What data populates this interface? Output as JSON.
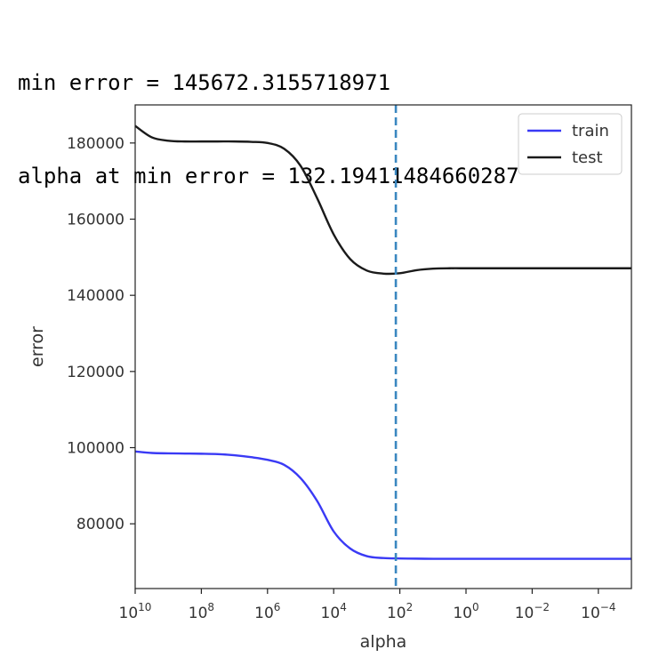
{
  "output_lines": [
    "min error = 145672.3155718971",
    "alpha at min error = 132.19411484660287"
  ],
  "chart_data": {
    "type": "line",
    "title": "",
    "xlabel": "alpha",
    "ylabel": "error",
    "x_scale": "log",
    "x_inverted": true,
    "xlim": [
      10000000000,
      1e-05
    ],
    "ylim": [
      63000,
      190000
    ],
    "x_ticks": [
      {
        "value": 10000000000,
        "base": "10",
        "exp": "10"
      },
      {
        "value": 100000000,
        "base": "10",
        "exp": "8"
      },
      {
        "value": 1000000,
        "base": "10",
        "exp": "6"
      },
      {
        "value": 10000,
        "base": "10",
        "exp": "4"
      },
      {
        "value": 100,
        "base": "10",
        "exp": "2"
      },
      {
        "value": 1,
        "base": "10",
        "exp": "0"
      },
      {
        "value": 0.01,
        "base": "10",
        "exp": "−2"
      },
      {
        "value": 0.0001,
        "base": "10",
        "exp": "−4"
      }
    ],
    "y_ticks": [
      {
        "value": 80000,
        "label": "80000"
      },
      {
        "value": 100000,
        "label": "100000"
      },
      {
        "value": 120000,
        "label": "120000"
      },
      {
        "value": 140000,
        "label": "140000"
      },
      {
        "value": 160000,
        "label": "160000"
      },
      {
        "value": 180000,
        "label": "180000"
      }
    ],
    "vline": {
      "x": 132.19411484660287,
      "color": "#3a87c0",
      "style": "dashed"
    },
    "legend_position": "top-right",
    "grid": false,
    "series": [
      {
        "name": "train",
        "color": "#3a3af5",
        "x": [
          10000000000,
          3162277660,
          1000000000,
          316227766,
          100000000,
          31622777,
          10000000,
          3162278,
          1000000,
          316228,
          100000,
          31623,
          10000,
          3162,
          1000,
          316,
          100,
          31.6,
          10,
          3.16,
          1,
          0.316,
          0.1,
          0.0316,
          0.01,
          0.00316,
          0.001,
          0.000316,
          0.0001,
          3.16e-05,
          1e-05
        ],
        "y": [
          99000,
          98600,
          98500,
          98450,
          98400,
          98300,
          98000,
          97500,
          96800,
          95500,
          92000,
          86000,
          78000,
          73500,
          71500,
          71000,
          70900,
          70850,
          70800,
          70800,
          70800,
          70800,
          70800,
          70800,
          70800,
          70800,
          70800,
          70800,
          70800,
          70800,
          70800
        ]
      },
      {
        "name": "test",
        "color": "#1a1a1a",
        "x": [
          10000000000,
          3162277660,
          1000000000,
          316227766,
          100000000,
          31622777,
          10000000,
          3162278,
          1000000,
          316228,
          100000,
          31623,
          10000,
          3162,
          1000,
          316,
          100,
          31.6,
          10,
          3.16,
          1,
          0.316,
          0.1,
          0.0316,
          0.01,
          0.00316,
          0.001,
          0.000316,
          0.0001,
          3.16e-05,
          1e-05
        ],
        "y": [
          184500,
          181500,
          180600,
          180400,
          180400,
          180400,
          180400,
          180300,
          180000,
          178500,
          174000,
          165500,
          156000,
          149500,
          146500,
          145700,
          145800,
          146600,
          147000,
          147100,
          147100,
          147100,
          147100,
          147100,
          147100,
          147100,
          147100,
          147100,
          147100,
          147100,
          147100
        ]
      }
    ]
  }
}
